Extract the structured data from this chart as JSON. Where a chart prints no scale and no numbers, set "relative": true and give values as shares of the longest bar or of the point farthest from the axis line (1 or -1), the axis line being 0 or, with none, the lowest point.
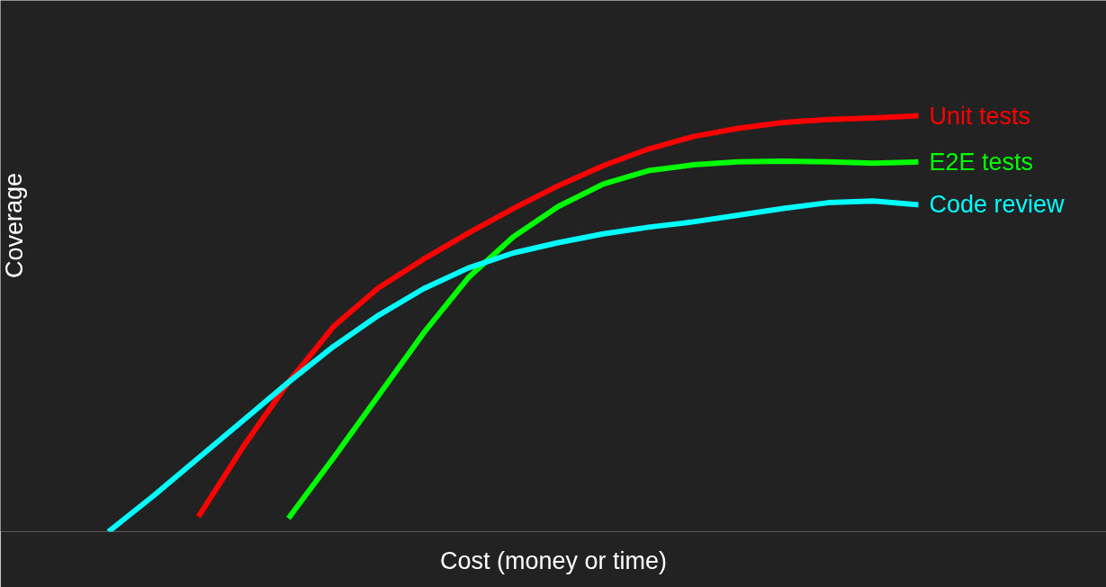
{
  "chart_data": {
    "type": "line",
    "relative": true,
    "xlabel": "Cost (money or time)",
    "ylabel": "Coverage",
    "legend": false,
    "grid": false,
    "marker": "none",
    "line_style": "solid",
    "categories": [
      null,
      null,
      null,
      null,
      null,
      null,
      null,
      null,
      null,
      null,
      null,
      null,
      null,
      null,
      null,
      null,
      null,
      null,
      null
    ],
    "series": [
      {
        "name": "Unit tests",
        "color": "#ff0000",
        "values": [
          null,
          null,
          0.036,
          0.205,
          0.359,
          0.493,
          0.586,
          0.655,
          0.718,
          0.777,
          0.832,
          0.88,
          0.92,
          0.95,
          0.97,
          0.984,
          0.991,
          0.995,
          1
        ]
      },
      {
        "name": "E2E tests",
        "color": "#00ff00",
        "values": [
          null,
          null,
          null,
          null,
          0.032,
          0.177,
          0.327,
          0.477,
          0.611,
          0.709,
          0.782,
          0.836,
          0.868,
          0.882,
          0.889,
          0.891,
          0.889,
          0.886,
          0.889
        ]
      },
      {
        "name": "Code review",
        "color": "#00ffff",
        "values": [
          0,
          0.086,
          0.177,
          0.268,
          0.359,
          0.445,
          0.52,
          0.584,
          0.634,
          0.67,
          0.695,
          0.716,
          0.732,
          0.745,
          0.761,
          0.777,
          0.791,
          0.795,
          0.786
        ]
      }
    ]
  }
}
